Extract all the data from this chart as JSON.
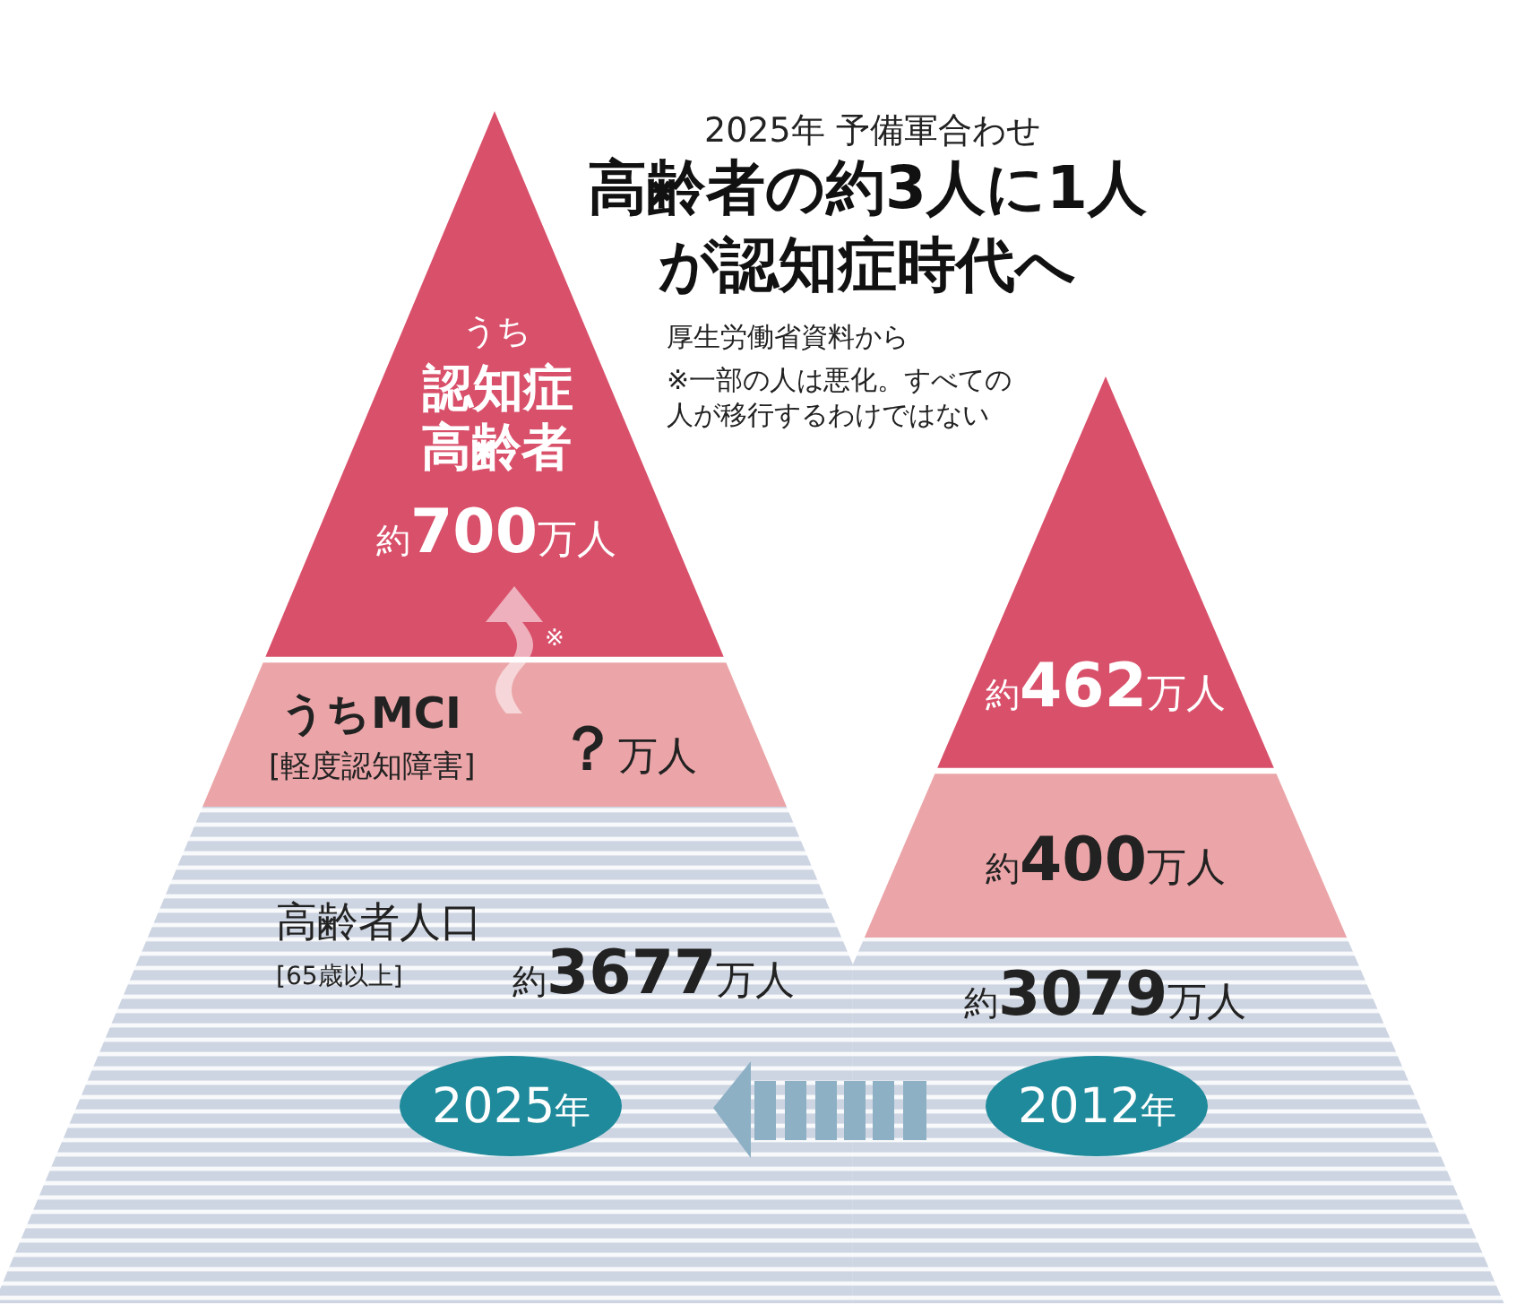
{
  "chart_data": {
    "type": "other",
    "subtitle": "2025年 予備軍合わせ",
    "title": "高齢者の約3人に1人が認知症時代へ",
    "categories": [
      "2025年",
      "2012年"
    ],
    "series": [
      {
        "name": "高齢者人口\n[65歳以上]",
        "color": "#cdd5e2",
        "values": [
          3677,
          3079
        ],
        "value_labels": [
          "約3677万人",
          "約3079万人"
        ]
      },
      {
        "name": "うちMCI\n[軽度認知障害]",
        "color": "#eba5a8",
        "values": [
          null,
          400
        ],
        "value_labels": [
          "？万人",
          "約400万人"
        ]
      },
      {
        "name": "うち認知症高齢者",
        "color": "#d9506a",
        "values": [
          700,
          462
        ],
        "value_labels": [
          "約700万人",
          "約462万人"
        ]
      }
    ],
    "annotations": [
      "厚生労働省資料から",
      "※一部の人は悪化。すべての人が移行するわけではない",
      "※"
    ]
  }
}
